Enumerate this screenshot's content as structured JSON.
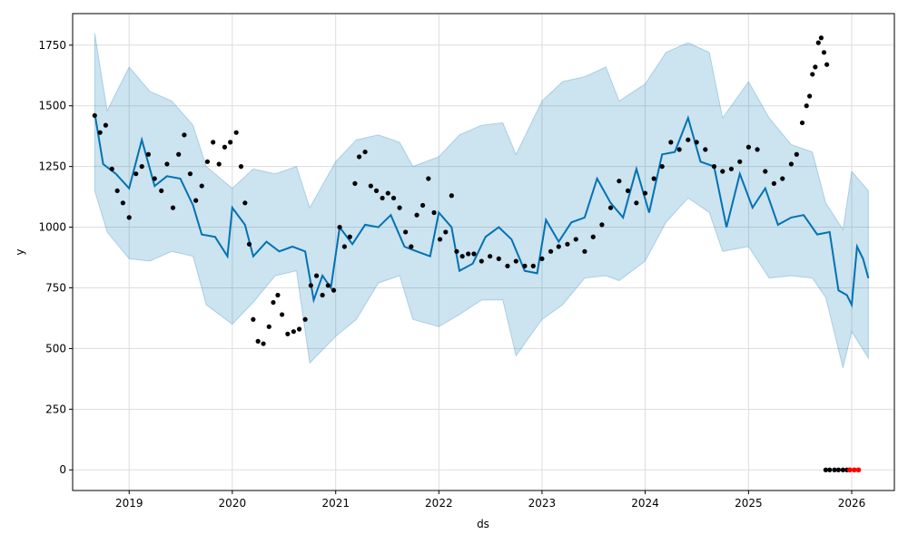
{
  "chart_data": {
    "type": "line",
    "title": "",
    "xlabel": "ds",
    "ylabel": "y",
    "xlim": [
      "2018-06-15",
      "2026-06-01"
    ],
    "ylim": [
      -85,
      1880
    ],
    "grid": true,
    "x_ticks": [
      {
        "label": "2019",
        "date": "2019-01-01"
      },
      {
        "label": "2020",
        "date": "2020-01-01"
      },
      {
        "label": "2021",
        "date": "2021-01-01"
      },
      {
        "label": "2022",
        "date": "2022-01-01"
      },
      {
        "label": "2023",
        "date": "2023-01-01"
      },
      {
        "label": "2024",
        "date": "2024-01-01"
      },
      {
        "label": "2025",
        "date": "2025-01-01"
      },
      {
        "label": "2026",
        "date": "2026-01-01"
      }
    ],
    "y_ticks": [
      0,
      250,
      500,
      750,
      1000,
      1250,
      1500,
      1750
    ],
    "colors": {
      "forecast_line": "#0072b2",
      "interval_fill": "#0072b2",
      "observed_points": "#000000",
      "highlight_points": "#ff0000",
      "grid": "#dddddd"
    },
    "series": [
      {
        "role": "uncertainty-interval",
        "x": [
          "2018-09-01",
          "2018-10-15",
          "2019-01-01",
          "2019-03-15",
          "2019-06-01",
          "2019-08-15",
          "2019-10-01",
          "2020-01-01",
          "2020-03-15",
          "2020-06-01",
          "2020-08-15",
          "2020-10-01",
          "2021-01-01",
          "2021-03-15",
          "2021-06-01",
          "2021-08-15",
          "2021-10-01",
          "2022-01-01",
          "2022-03-15",
          "2022-06-01",
          "2022-08-15",
          "2022-10-01",
          "2023-01-01",
          "2023-03-15",
          "2023-06-01",
          "2023-08-15",
          "2023-10-01",
          "2024-01-01",
          "2024-03-15",
          "2024-06-01",
          "2024-08-15",
          "2024-10-01",
          "2025-01-01",
          "2025-03-15",
          "2025-06-01",
          "2025-08-15",
          "2025-10-01",
          "2025-12-01",
          "2026-01-01",
          "2026-03-01"
        ],
        "lower": [
          1150,
          980,
          870,
          860,
          900,
          880,
          680,
          600,
          690,
          800,
          820,
          440,
          550,
          620,
          770,
          800,
          620,
          590,
          640,
          700,
          700,
          470,
          620,
          680,
          790,
          800,
          780,
          860,
          1020,
          1120,
          1060,
          900,
          920,
          790,
          800,
          790,
          710,
          420,
          570,
          460
        ],
        "upper": [
          1800,
          1480,
          1660,
          1560,
          1520,
          1420,
          1250,
          1160,
          1240,
          1220,
          1250,
          1080,
          1270,
          1360,
          1380,
          1350,
          1250,
          1290,
          1380,
          1420,
          1430,
          1300,
          1520,
          1600,
          1620,
          1660,
          1520,
          1590,
          1720,
          1760,
          1720,
          1450,
          1600,
          1450,
          1340,
          1310,
          1100,
          990,
          1230,
          1150
        ]
      },
      {
        "role": "forecast",
        "name": "",
        "x": [
          "2018-09-01",
          "2018-10-01",
          "2018-11-15",
          "2019-01-01",
          "2019-02-15",
          "2019-04-01",
          "2019-05-15",
          "2019-07-01",
          "2019-08-15",
          "2019-09-15",
          "2019-11-01",
          "2019-12-15",
          "2020-01-01",
          "2020-02-15",
          "2020-03-15",
          "2020-05-01",
          "2020-06-15",
          "2020-08-01",
          "2020-09-15",
          "2020-10-15",
          "2020-11-15",
          "2020-12-15",
          "2021-01-15",
          "2021-03-01",
          "2021-04-15",
          "2021-06-01",
          "2021-07-15",
          "2021-09-01",
          "2021-10-15",
          "2021-12-01",
          "2022-01-01",
          "2022-02-15",
          "2022-03-15",
          "2022-05-01",
          "2022-06-15",
          "2022-08-01",
          "2022-09-15",
          "2022-11-01",
          "2022-12-15",
          "2023-01-15",
          "2023-03-01",
          "2023-04-15",
          "2023-06-01",
          "2023-07-15",
          "2023-09-01",
          "2023-10-15",
          "2023-12-01",
          "2024-01-15",
          "2024-03-01",
          "2024-04-15",
          "2024-06-01",
          "2024-07-15",
          "2024-09-01",
          "2024-10-15",
          "2024-12-01",
          "2025-01-15",
          "2025-03-01",
          "2025-04-15",
          "2025-06-01",
          "2025-07-15",
          "2025-09-01",
          "2025-10-15",
          "2025-11-15",
          "2025-12-15",
          "2026-01-01",
          "2026-01-20",
          "2026-02-10",
          "2026-03-01"
        ],
        "values": [
          1470,
          1260,
          1220,
          1160,
          1360,
          1170,
          1210,
          1200,
          1090,
          970,
          960,
          880,
          1080,
          1010,
          880,
          940,
          900,
          920,
          900,
          700,
          800,
          750,
          1000,
          930,
          1010,
          1000,
          1050,
          920,
          900,
          880,
          1060,
          1000,
          820,
          850,
          960,
          1000,
          950,
          820,
          810,
          1030,
          940,
          1020,
          1040,
          1200,
          1100,
          1040,
          1240,
          1060,
          1300,
          1310,
          1450,
          1270,
          1250,
          1000,
          1220,
          1080,
          1160,
          1010,
          1040,
          1050,
          970,
          980,
          740,
          720,
          680,
          920,
          870,
          790
        ]
      },
      {
        "role": "observed",
        "name": "",
        "x": [
          "2018-09-01",
          "2018-09-20",
          "2018-10-10",
          "2018-11-01",
          "2018-11-20",
          "2018-12-10",
          "2019-01-01",
          "2019-01-25",
          "2019-02-15",
          "2019-03-10",
          "2019-04-01",
          "2019-04-25",
          "2019-05-15",
          "2019-06-05",
          "2019-06-25",
          "2019-07-15",
          "2019-08-05",
          "2019-08-25",
          "2019-09-15",
          "2019-10-05",
          "2019-10-25",
          "2019-11-15",
          "2019-12-05",
          "2019-12-25",
          "2020-01-15",
          "2020-02-01",
          "2020-02-15",
          "2020-03-01",
          "2020-03-15",
          "2020-04-01",
          "2020-04-20",
          "2020-05-10",
          "2020-05-25",
          "2020-06-10",
          "2020-06-25",
          "2020-07-15",
          "2020-08-05",
          "2020-08-25",
          "2020-09-15",
          "2020-10-05",
          "2020-10-25",
          "2020-11-15",
          "2020-12-05",
          "2020-12-25",
          "2021-01-15",
          "2021-02-01",
          "2021-02-20",
          "2021-03-10",
          "2021-03-25",
          "2021-04-15",
          "2021-05-05",
          "2021-05-25",
          "2021-06-15",
          "2021-07-05",
          "2021-07-25",
          "2021-08-15",
          "2021-09-05",
          "2021-09-25",
          "2021-10-15",
          "2021-11-05",
          "2021-11-25",
          "2021-12-15",
          "2022-01-05",
          "2022-01-25",
          "2022-02-15",
          "2022-03-05",
          "2022-03-25",
          "2022-04-15",
          "2022-05-05",
          "2022-06-01",
          "2022-07-01",
          "2022-08-01",
          "2022-09-01",
          "2022-10-01",
          "2022-11-01",
          "2022-12-01",
          "2023-01-01",
          "2023-02-01",
          "2023-03-01",
          "2023-04-01",
          "2023-05-01",
          "2023-06-01",
          "2023-07-01",
          "2023-08-01",
          "2023-09-01",
          "2023-10-01",
          "2023-11-01",
          "2023-12-01",
          "2024-01-01",
          "2024-02-01",
          "2024-03-01",
          "2024-04-01",
          "2024-05-01",
          "2024-06-01",
          "2024-07-01",
          "2024-08-01",
          "2024-09-01",
          "2024-10-01",
          "2024-11-01",
          "2024-12-01",
          "2025-01-01",
          "2025-02-01",
          "2025-03-01",
          "2025-04-01",
          "2025-05-01",
          "2025-06-01",
          "2025-06-20",
          "2025-07-10",
          "2025-07-25",
          "2025-08-05",
          "2025-08-15",
          "2025-08-25",
          "2025-09-05",
          "2025-09-15",
          "2025-09-25",
          "2025-10-05"
        ],
        "values": [
          1460,
          1390,
          1420,
          1240,
          1150,
          1100,
          1040,
          1220,
          1250,
          1300,
          1200,
          1150,
          1260,
          1080,
          1300,
          1380,
          1220,
          1110,
          1170,
          1270,
          1350,
          1260,
          1330,
          1350,
          1390,
          1250,
          1100,
          930,
          620,
          530,
          520,
          590,
          690,
          720,
          640,
          560,
          570,
          580,
          620,
          760,
          800,
          720,
          760,
          740,
          1000,
          920,
          960,
          1180,
          1290,
          1310,
          1170,
          1150,
          1120,
          1140,
          1120,
          1080,
          980,
          920,
          1050,
          1090,
          1200,
          1060,
          950,
          980,
          1130,
          900,
          880,
          890,
          890,
          860,
          880,
          870,
          840,
          860,
          840,
          840,
          870,
          900,
          920,
          930,
          950,
          900,
          960,
          1010,
          1080,
          1190,
          1150,
          1100,
          1140,
          1200,
          1250,
          1350,
          1320,
          1360,
          1350,
          1320,
          1250,
          1230,
          1240,
          1270,
          1330,
          1320,
          1230,
          1180,
          1200,
          1260,
          1300,
          1430,
          1500,
          1540,
          1630,
          1660,
          1760,
          1780,
          1720,
          1670
        ]
      },
      {
        "role": "observed-near-zero",
        "name": "",
        "x": [
          "2025-10-01",
          "2025-10-15",
          "2025-11-01",
          "2025-11-15",
          "2025-12-01",
          "2025-12-15"
        ],
        "values": [
          0,
          0,
          0,
          0,
          0,
          0
        ]
      },
      {
        "role": "highlight",
        "name": "",
        "x": [
          "2025-12-25",
          "2026-01-10",
          "2026-01-25"
        ],
        "values": [
          0,
          0,
          0
        ]
      }
    ]
  }
}
